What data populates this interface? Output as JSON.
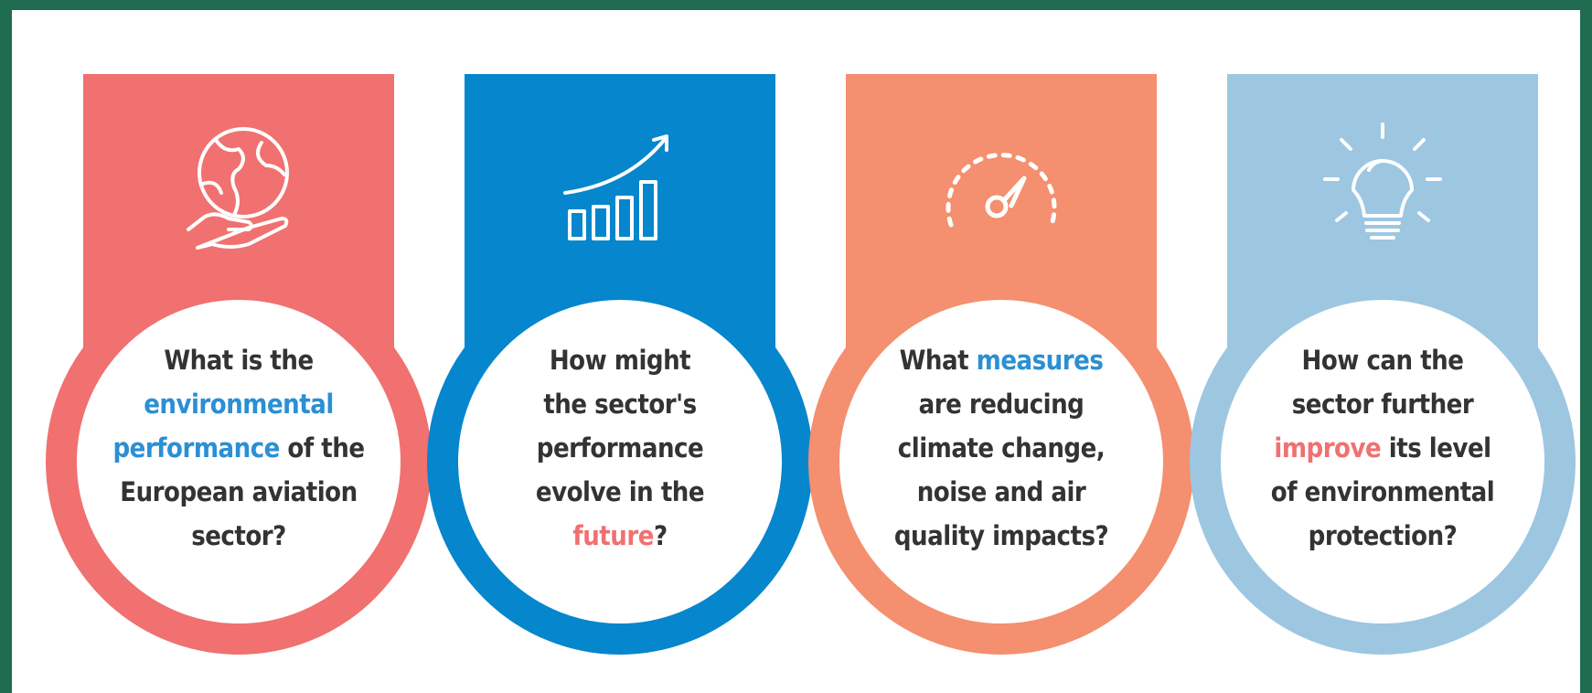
{
  "cards": [
    {
      "color": "#f07170",
      "highlight_color": "#2b8fd4",
      "lines": [
        [
          {
            "text": "What is the"
          }
        ],
        [
          {
            "text": "environmental",
            "highlight": true
          }
        ],
        [
          {
            "text": "performance",
            "highlight": true
          },
          {
            "text": " of the"
          }
        ],
        [
          {
            "text": "European aviation"
          }
        ],
        [
          {
            "text": "sector?"
          }
        ]
      ]
    },
    {
      "color": "#0686cc",
      "highlight_color": "#f07170",
      "lines": [
        [
          {
            "text": "How might"
          }
        ],
        [
          {
            "text": "the sector's"
          }
        ],
        [
          {
            "text": "performance"
          }
        ],
        [
          {
            "text": "evolve in the"
          }
        ],
        [
          {
            "text": "future",
            "highlight": true
          },
          {
            "text": "?"
          }
        ]
      ]
    },
    {
      "color": "#f48f6f",
      "highlight_color": "#2b8fd4",
      "lines": [
        [
          {
            "text": "What "
          },
          {
            "text": "measures",
            "highlight": true
          }
        ],
        [
          {
            "text": "are reducing"
          }
        ],
        [
          {
            "text": "climate change,"
          }
        ],
        [
          {
            "text": "noise and air"
          }
        ],
        [
          {
            "text": "quality impacts?"
          }
        ]
      ]
    },
    {
      "color": "#9dc6e1",
      "highlight_color": "#f07170",
      "lines": [
        [
          {
            "text": "How can the"
          }
        ],
        [
          {
            "text": "sector further"
          }
        ],
        [
          {
            "text": "improve",
            "highlight": true
          },
          {
            "text": " its level"
          }
        ],
        [
          {
            "text": "of environmental"
          }
        ],
        [
          {
            "text": "protection?"
          }
        ]
      ]
    }
  ]
}
